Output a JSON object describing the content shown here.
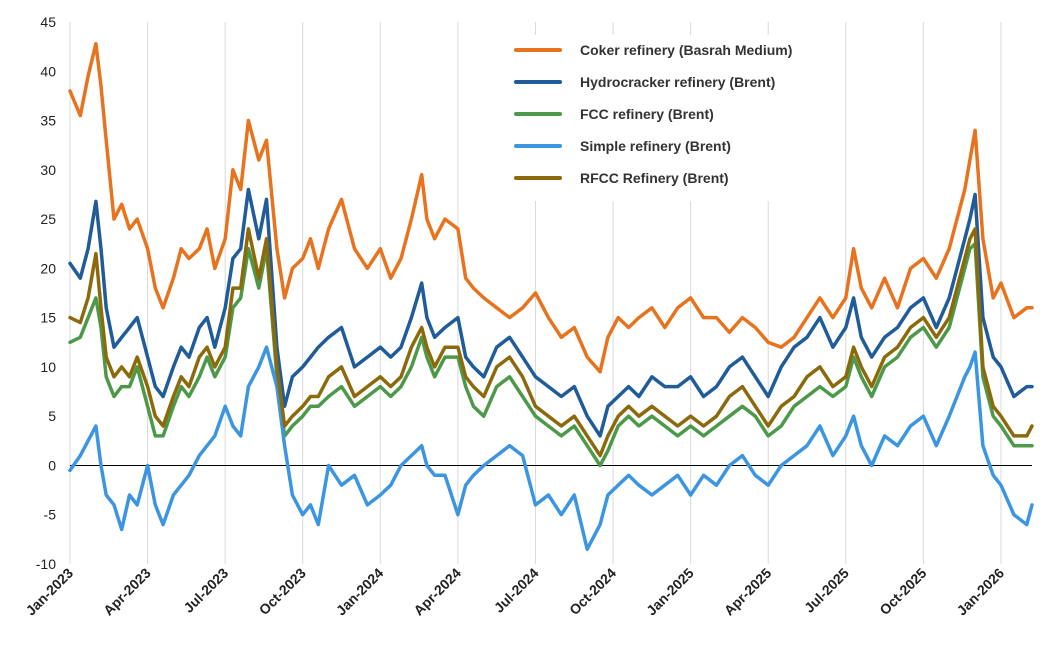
{
  "chart_data": {
    "type": "line",
    "title": "",
    "xlabel": "",
    "ylabel": "",
    "ylim": [
      -10,
      45
    ],
    "yticks": [
      -10,
      -5,
      0,
      5,
      10,
      15,
      20,
      25,
      30,
      35,
      40,
      45
    ],
    "xlim": [
      0,
      37.2
    ],
    "x_unit": "months since Jan-2023",
    "xticks": [
      {
        "x": 0,
        "label": "Jan-2023"
      },
      {
        "x": 3,
        "label": "Apr-2023"
      },
      {
        "x": 6,
        "label": "Jul-2023"
      },
      {
        "x": 9,
        "label": "Oct-2023"
      },
      {
        "x": 12,
        "label": "Jan-2024"
      },
      {
        "x": 15,
        "label": "Apr-2024"
      },
      {
        "x": 18,
        "label": "Jul-2024"
      },
      {
        "x": 21,
        "label": "Oct-2024"
      },
      {
        "x": 24,
        "label": "Jan-2025"
      },
      {
        "x": 27,
        "label": "Apr-2025"
      },
      {
        "x": 30,
        "label": "Jul-2025"
      },
      {
        "x": 33,
        "label": "Oct-2025"
      },
      {
        "x": 36,
        "label": "Jan-2026"
      }
    ],
    "grid": "vertical",
    "legend_position": "top-right",
    "series": [
      {
        "name": "Coker refinery (Basrah Medium)",
        "color": "#E8731F",
        "x": [
          0,
          0.4,
          0.7,
          1.0,
          1.2,
          1.4,
          1.7,
          2.0,
          2.3,
          2.6,
          3.0,
          3.3,
          3.6,
          4.0,
          4.3,
          4.6,
          5.0,
          5.3,
          5.6,
          6.0,
          6.3,
          6.6,
          6.9,
          7.3,
          7.6,
          8.0,
          8.3,
          8.6,
          9.0,
          9.3,
          9.6,
          10.0,
          10.5,
          11.0,
          11.5,
          12.0,
          12.4,
          12.8,
          13.2,
          13.6,
          13.8,
          14.1,
          14.5,
          15.0,
          15.3,
          15.6,
          16.0,
          16.5,
          17.0,
          17.5,
          18.0,
          18.5,
          19.0,
          19.5,
          20.0,
          20.5,
          20.8,
          21.2,
          21.6,
          22.0,
          22.5,
          23.0,
          23.5,
          24.0,
          24.5,
          25.0,
          25.5,
          26.0,
          26.5,
          27.0,
          27.5,
          28.0,
          28.5,
          29.0,
          29.5,
          30.0,
          30.3,
          30.6,
          31.0,
          31.5,
          32.0,
          32.5,
          33.0,
          33.5,
          34.0,
          34.3,
          34.6,
          34.8,
          35.0,
          35.3,
          35.7,
          36.0,
          36.5,
          37.0,
          37.2
        ],
        "values": [
          38,
          35.5,
          39.5,
          42.8,
          38.5,
          33,
          25,
          26.5,
          24,
          25,
          22,
          18,
          16,
          19,
          22,
          21,
          22,
          24,
          20,
          23,
          30,
          28,
          35,
          31,
          33,
          22,
          17,
          20,
          21,
          23,
          20,
          24,
          27,
          22,
          20,
          22,
          19,
          21,
          25,
          29.5,
          25,
          23,
          25,
          24,
          19,
          18,
          17,
          16,
          15,
          16,
          17.5,
          15,
          13,
          14,
          11,
          9.5,
          13,
          15,
          14,
          15,
          16,
          14,
          16,
          17,
          15,
          15,
          13.5,
          15,
          14,
          12.5,
          12,
          13,
          15,
          17,
          15,
          17,
          22,
          18,
          16,
          19,
          16,
          20,
          21,
          19,
          22,
          25,
          28,
          31,
          34,
          23,
          17,
          18.5,
          15,
          16,
          16
        ]
      },
      {
        "name": "Hydrocracker refinery (Brent)",
        "color": "#1F5C99",
        "x": [
          0,
          0.4,
          0.7,
          1.0,
          1.2,
          1.4,
          1.7,
          2.0,
          2.3,
          2.6,
          3.0,
          3.3,
          3.6,
          4.0,
          4.3,
          4.6,
          5.0,
          5.3,
          5.6,
          6.0,
          6.3,
          6.6,
          6.9,
          7.3,
          7.6,
          8.0,
          8.3,
          8.6,
          9.0,
          9.3,
          9.6,
          10.0,
          10.5,
          11.0,
          11.5,
          12.0,
          12.4,
          12.8,
          13.2,
          13.6,
          13.8,
          14.1,
          14.5,
          15.0,
          15.3,
          15.6,
          16.0,
          16.5,
          17.0,
          17.5,
          18.0,
          18.5,
          19.0,
          19.5,
          20.0,
          20.5,
          20.8,
          21.2,
          21.6,
          22.0,
          22.5,
          23.0,
          23.5,
          24.0,
          24.5,
          25.0,
          25.5,
          26.0,
          26.5,
          27.0,
          27.5,
          28.0,
          28.5,
          29.0,
          29.5,
          30.0,
          30.3,
          30.6,
          31.0,
          31.5,
          32.0,
          32.5,
          33.0,
          33.5,
          34.0,
          34.3,
          34.6,
          34.8,
          35.0,
          35.3,
          35.7,
          36.0,
          36.5,
          37.0,
          37.2
        ],
        "values": [
          20.5,
          19,
          22,
          26.8,
          22,
          16,
          12,
          13,
          14,
          15,
          11,
          8,
          7,
          10,
          12,
          11,
          14,
          15,
          12,
          16,
          21,
          22,
          28,
          23,
          27,
          12,
          6,
          9,
          10,
          11,
          12,
          13,
          14,
          10,
          11,
          12,
          11,
          12,
          15,
          18.5,
          15,
          13,
          14,
          15,
          11,
          10,
          9,
          12,
          13,
          11,
          9,
          8,
          7,
          8,
          5,
          3,
          6,
          7,
          8,
          7,
          9,
          8,
          8,
          9,
          7,
          8,
          10,
          11,
          9,
          7,
          10,
          12,
          13,
          15,
          12,
          14,
          17,
          13,
          11,
          13,
          14,
          16,
          17,
          14,
          17,
          20,
          23,
          25,
          27.5,
          15,
          11,
          10,
          7,
          8,
          8
        ]
      },
      {
        "name": "FCC refinery (Brent)",
        "color": "#4C9A49",
        "x": [
          0,
          0.4,
          0.7,
          1.0,
          1.2,
          1.4,
          1.7,
          2.0,
          2.3,
          2.6,
          3.0,
          3.3,
          3.6,
          4.0,
          4.3,
          4.6,
          5.0,
          5.3,
          5.6,
          6.0,
          6.3,
          6.6,
          6.9,
          7.3,
          7.6,
          8.0,
          8.3,
          8.6,
          9.0,
          9.3,
          9.6,
          10.0,
          10.5,
          11.0,
          11.5,
          12.0,
          12.4,
          12.8,
          13.2,
          13.6,
          13.8,
          14.1,
          14.5,
          15.0,
          15.3,
          15.6,
          16.0,
          16.5,
          17.0,
          17.5,
          18.0,
          18.5,
          19.0,
          19.5,
          20.0,
          20.5,
          20.8,
          21.2,
          21.6,
          22.0,
          22.5,
          23.0,
          23.5,
          24.0,
          24.5,
          25.0,
          25.5,
          26.0,
          26.5,
          27.0,
          27.5,
          28.0,
          28.5,
          29.0,
          29.5,
          30.0,
          30.3,
          30.6,
          31.0,
          31.5,
          32.0,
          32.5,
          33.0,
          33.5,
          34.0,
          34.3,
          34.6,
          34.8,
          35.0,
          35.3,
          35.7,
          36.0,
          36.5,
          37.0,
          37.2
        ],
        "values": [
          12.5,
          13,
          15,
          17,
          14,
          9,
          7,
          8,
          8,
          10,
          6,
          3,
          3,
          6,
          8,
          7,
          9,
          11,
          9,
          11,
          16,
          17,
          22,
          18,
          22,
          9,
          3,
          4,
          5,
          6,
          6,
          7,
          8,
          6,
          7,
          8,
          7,
          8,
          10,
          13,
          11,
          9,
          11,
          11,
          8,
          6,
          5,
          8,
          9,
          7,
          5,
          4,
          3,
          4,
          2,
          0,
          1.5,
          4,
          5,
          4,
          5,
          4,
          3,
          4,
          3,
          4,
          5,
          6,
          5,
          3,
          4,
          6,
          7,
          8,
          7,
          8,
          11,
          9,
          7,
          10,
          11,
          13,
          14,
          12,
          14,
          17,
          20,
          22,
          22.5,
          9,
          5,
          4,
          2,
          2,
          2
        ]
      },
      {
        "name": "Simple refinery (Brent)",
        "color": "#3B95E0",
        "x": [
          0,
          0.4,
          0.7,
          1.0,
          1.2,
          1.4,
          1.7,
          2.0,
          2.3,
          2.6,
          3.0,
          3.3,
          3.6,
          4.0,
          4.3,
          4.6,
          5.0,
          5.3,
          5.6,
          6.0,
          6.3,
          6.6,
          6.9,
          7.3,
          7.6,
          8.0,
          8.3,
          8.6,
          9.0,
          9.3,
          9.6,
          10.0,
          10.5,
          11.0,
          11.5,
          12.0,
          12.4,
          12.8,
          13.2,
          13.6,
          13.8,
          14.1,
          14.5,
          15.0,
          15.3,
          15.6,
          16.0,
          16.5,
          17.0,
          17.5,
          18.0,
          18.5,
          19.0,
          19.5,
          20.0,
          20.5,
          20.8,
          21.2,
          21.6,
          22.0,
          22.5,
          23.0,
          23.5,
          24.0,
          24.5,
          25.0,
          25.5,
          26.0,
          26.5,
          27.0,
          27.5,
          28.0,
          28.5,
          29.0,
          29.5,
          30.0,
          30.3,
          30.6,
          31.0,
          31.5,
          32.0,
          32.5,
          33.0,
          33.5,
          34.0,
          34.3,
          34.6,
          34.8,
          35.0,
          35.3,
          35.7,
          36.0,
          36.5,
          37.0,
          37.2
        ],
        "values": [
          -0.5,
          1,
          2.5,
          4,
          0,
          -3,
          -4,
          -6.5,
          -3,
          -4,
          0,
          -4,
          -6,
          -3,
          -2,
          -1,
          1,
          2,
          3,
          6,
          4,
          3,
          8,
          10,
          12,
          8,
          2,
          -3,
          -5,
          -4,
          -6,
          0,
          -2,
          -1,
          -4,
          -3,
          -2,
          0,
          1,
          2,
          0,
          -1,
          -1,
          -5,
          -2,
          -1,
          0,
          1,
          2,
          1,
          -4,
          -3,
          -5,
          -3,
          -8.5,
          -6,
          -3,
          -2,
          -1,
          -2,
          -3,
          -2,
          -1,
          -3,
          -1,
          -2,
          0,
          1,
          -1,
          -2,
          0,
          1,
          2,
          4,
          1,
          3,
          5,
          2,
          0,
          3,
          2,
          4,
          5,
          2,
          5,
          7,
          9,
          10,
          11.5,
          2,
          -1,
          -2,
          -5,
          -6,
          -4
        ]
      },
      {
        "name": "RFCC Refinery (Brent)",
        "color": "#8C6A0C",
        "x": [
          0,
          0.4,
          0.7,
          1.0,
          1.2,
          1.4,
          1.7,
          2.0,
          2.3,
          2.6,
          3.0,
          3.3,
          3.6,
          4.0,
          4.3,
          4.6,
          5.0,
          5.3,
          5.6,
          6.0,
          6.3,
          6.6,
          6.9,
          7.3,
          7.6,
          8.0,
          8.3,
          8.6,
          9.0,
          9.3,
          9.6,
          10.0,
          10.5,
          11.0,
          11.5,
          12.0,
          12.4,
          12.8,
          13.2,
          13.6,
          13.8,
          14.1,
          14.5,
          15.0,
          15.3,
          15.6,
          16.0,
          16.5,
          17.0,
          17.5,
          18.0,
          18.5,
          19.0,
          19.5,
          20.0,
          20.5,
          20.8,
          21.2,
          21.6,
          22.0,
          22.5,
          23.0,
          23.5,
          24.0,
          24.5,
          25.0,
          25.5,
          26.0,
          26.5,
          27.0,
          27.5,
          28.0,
          28.5,
          29.0,
          29.5,
          30.0,
          30.3,
          30.6,
          31.0,
          31.5,
          32.0,
          32.5,
          33.0,
          33.5,
          34.0,
          34.3,
          34.6,
          34.8,
          35.0,
          35.3,
          35.7,
          36.0,
          36.5,
          37.0,
          37.2
        ],
        "values": [
          15,
          14.5,
          17,
          21.5,
          16,
          11,
          9,
          10,
          9,
          11,
          8,
          5,
          4,
          7,
          9,
          8,
          11,
          12,
          10,
          12,
          18,
          18,
          24,
          19,
          23,
          10,
          4,
          5,
          6,
          7,
          7,
          9,
          10,
          7,
          8,
          9,
          8,
          9,
          12,
          14,
          12,
          10,
          12,
          12,
          9,
          8,
          7,
          10,
          11,
          9,
          6,
          5,
          4,
          5,
          3,
          1,
          3,
          5,
          6,
          5,
          6,
          5,
          4,
          5,
          4,
          5,
          7,
          8,
          6,
          4,
          6,
          7,
          9,
          10,
          8,
          9,
          12,
          10,
          8,
          11,
          12,
          14,
          15,
          13,
          15,
          18,
          21,
          23,
          24,
          10,
          6,
          5,
          3,
          3,
          4
        ]
      }
    ]
  }
}
